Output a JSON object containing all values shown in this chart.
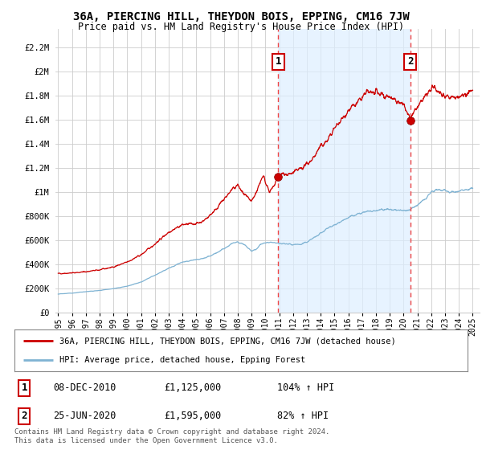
{
  "title": "36A, PIERCING HILL, THEYDON BOIS, EPPING, CM16 7JW",
  "subtitle": "Price paid vs. HM Land Registry's House Price Index (HPI)",
  "ylabel_ticks": [
    0,
    200000,
    400000,
    600000,
    800000,
    1000000,
    1200000,
    1400000,
    1600000,
    1800000,
    2000000,
    2200000
  ],
  "ylabel_labels": [
    "£0",
    "£200K",
    "£400K",
    "£600K",
    "£800K",
    "£1M",
    "£1.2M",
    "£1.4M",
    "£1.6M",
    "£1.8M",
    "£2M",
    "£2.2M"
  ],
  "ylim": [
    0,
    2350000
  ],
  "xlim_start": 1994.8,
  "xlim_end": 2025.5,
  "xtick_years": [
    1995,
    1996,
    1997,
    1998,
    1999,
    2000,
    2001,
    2002,
    2003,
    2004,
    2005,
    2006,
    2007,
    2008,
    2009,
    2010,
    2011,
    2012,
    2013,
    2014,
    2015,
    2016,
    2017,
    2018,
    2019,
    2020,
    2021,
    2022,
    2023,
    2024,
    2025
  ],
  "marker1_x": 2010.92,
  "marker1_y": 1125000,
  "marker1_label": "1",
  "marker2_x": 2020.48,
  "marker2_y": 1595000,
  "marker2_label": "2",
  "red_line_color": "#cc0000",
  "blue_line_color": "#7fb3d3",
  "vline_color": "#ee4444",
  "shade_color": "#ddeeff",
  "legend_label_red": "36A, PIERCING HILL, THEYDON BOIS, EPPING, CM16 7JW (detached house)",
  "legend_label_blue": "HPI: Average price, detached house, Epping Forest",
  "annotation1": [
    "1",
    "08-DEC-2010",
    "£1,125,000",
    "104% ↑ HPI"
  ],
  "annotation2": [
    "2",
    "25-JUN-2020",
    "£1,595,000",
    "82% ↑ HPI"
  ],
  "footer": "Contains HM Land Registry data © Crown copyright and database right 2024.\nThis data is licensed under the Open Government Licence v3.0.",
  "background_color": "#ffffff",
  "grid_color": "#cccccc"
}
